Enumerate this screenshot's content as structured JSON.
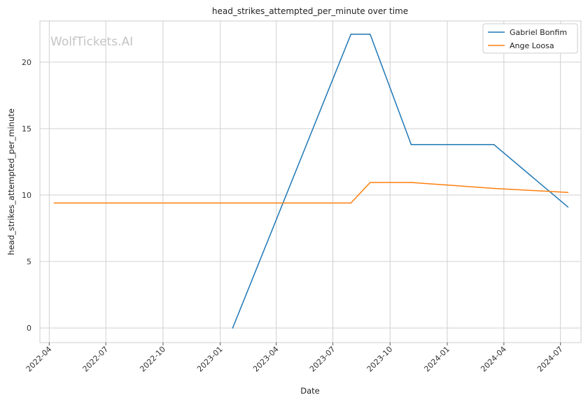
{
  "chart_data": {
    "type": "line",
    "title": "head_strikes_attempted_per_minute over time",
    "xlabel": "Date",
    "ylabel": "head_strikes_attempted_per_minute",
    "watermark": "WolfTickets.AI",
    "x_ticks": [
      "2022-04",
      "2022-07",
      "2022-10",
      "2023-01",
      "2023-04",
      "2023-07",
      "2023-10",
      "2024-01",
      "2024-04",
      "2024-07"
    ],
    "y_ticks": [
      0,
      5,
      10,
      15,
      20
    ],
    "xlim": [
      "2022-03-17",
      "2024-08-03"
    ],
    "ylim": [
      -1.1,
      23.1
    ],
    "grid": true,
    "legend_position": "top-right",
    "series": [
      {
        "name": "Gabriel Bonfim",
        "color": "#1f77b4",
        "points": [
          {
            "x": "2023-01-21",
            "y": 0.0
          },
          {
            "x": "2023-07-30",
            "y": 22.1
          },
          {
            "x": "2023-08-30",
            "y": 22.1
          },
          {
            "x": "2023-11-04",
            "y": 13.8
          },
          {
            "x": "2024-03-16",
            "y": 13.8
          },
          {
            "x": "2024-07-13",
            "y": 9.1
          }
        ]
      },
      {
        "name": "Ange Loosa",
        "color": "#ff7f0e",
        "points": [
          {
            "x": "2022-04-09",
            "y": 9.4
          },
          {
            "x": "2023-07-30",
            "y": 9.4
          },
          {
            "x": "2023-08-30",
            "y": 10.95
          },
          {
            "x": "2023-11-04",
            "y": 10.95
          },
          {
            "x": "2024-03-16",
            "y": 10.5
          },
          {
            "x": "2024-07-13",
            "y": 10.2
          }
        ]
      }
    ]
  }
}
